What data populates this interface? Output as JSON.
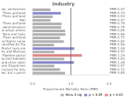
{
  "chart_data": {
    "type": "bar",
    "orientation": "horizontal",
    "title": "Industry",
    "xlabel": "Proportionate Mortality Ratio (PMR)",
    "categories": [
      "Transport of raw, semiproces",
      "Air Trans portland",
      "Postal Trans portland",
      "Rail",
      "Truck Trans portland",
      "Couriers administrators",
      "Bus, taxis and urban others",
      "Taxis and taxis",
      "Pipelines Trans portland",
      "Scenic and Sights same",
      "Serv and diversified Air Tra",
      "Postal taxis ore",
      "Platforms city and Marinas",
      "Pipeline postal",
      "Natural gas and Subsoils",
      "Pipeline, bus and other admi",
      "Postal supply and Dispatches",
      "Serv and Servs/null for driv",
      "Other utilities, but s purch"
    ],
    "values": [
      0.47,
      0.74,
      0.53,
      0.47,
      0.76,
      0.75,
      0.85,
      0.86,
      0.72,
      0.82,
      0.56,
      1.09,
      0.57,
      1.29,
      0.83,
      1.08,
      0.57,
      0.72,
      0.85
    ],
    "value_labels": [
      "PMR 0.47",
      "PMR 0.74",
      "PMR 0.53",
      "PMR 0.47",
      "PMR 0.76",
      "PMR 0.75",
      "PMR 0.85",
      "PMR 0.86",
      "PMR 0.72",
      "PMR 0.82",
      "PMR 0.56",
      "PMR 1.09",
      "PMR 0.57",
      "PMR 1.29",
      "PMR 0.83",
      "PMR 1.08",
      "PMR 0.57",
      "PMR 0.72",
      "PMR 0.85"
    ],
    "data_labels": true,
    "colors": [
      "#b0b0b0",
      "#8888cc",
      "#b0b0b0",
      "#b0b0b0",
      "#b0b0b0",
      "#b0b0b0",
      "#b0b0b0",
      "#b0b0b0",
      "#b0b0b0",
      "#b0b0b0",
      "#b0b0b0",
      "#8888cc",
      "#b0b0b0",
      "#e08888",
      "#b0b0b0",
      "#8888cc",
      "#b0b0b0",
      "#b0b0b0",
      "#b0b0b0"
    ],
    "xlim": [
      0,
      2.0
    ],
    "xticks": [
      {
        "value": 0,
        "label": "0.0"
      },
      {
        "value": 1,
        "label": "1.0"
      },
      {
        "value": 2,
        "label": "2.0"
      }
    ],
    "vline": 1.0,
    "grid": false,
    "legend": "lower right",
    "legend_items": [
      {
        "name": "Simu 4 sig",
        "color": "#b0b0b0"
      },
      {
        "name": "p < 0.05",
        "color": "#8888cc"
      },
      {
        "name": "p < 0.01",
        "color": "#e08888"
      }
    ]
  }
}
